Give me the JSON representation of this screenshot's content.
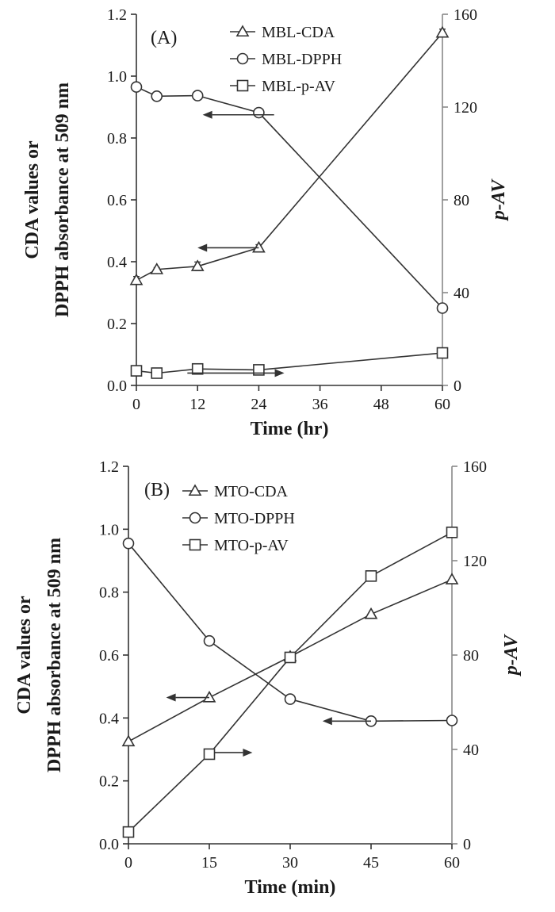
{
  "chart_data": [
    {
      "type": "line",
      "panel_label": "(A)",
      "xlabel": "Time (hr)",
      "ylabel_lines": [
        "CDA values or",
        "DPPH absorbance at 509 nm"
      ],
      "y2label": "p-AV",
      "xlim": [
        0,
        60
      ],
      "ylim": [
        0,
        1.2
      ],
      "y2lim": [
        0,
        160
      ],
      "xticks": [
        "0",
        "12",
        "24",
        "36",
        "48",
        "60"
      ],
      "yticks": [
        "0.0",
        "0.2",
        "0.4",
        "0.6",
        "0.8",
        "1.0",
        "1.2"
      ],
      "y2ticks": [
        "0",
        "40",
        "80",
        "120",
        "160"
      ],
      "legend_position": "top-right",
      "series": [
        {
          "name": "MBL-CDA",
          "marker": "triangle",
          "axis": "left",
          "x": [
            0,
            4,
            12,
            24,
            60
          ],
          "y": [
            0.34,
            0.375,
            0.385,
            0.445,
            1.14
          ],
          "err": [
            0.012,
            0.006,
            0.014,
            0.01,
            0.012
          ]
        },
        {
          "name": "MBL-DPPH",
          "marker": "circle",
          "axis": "left",
          "x": [
            0,
            4,
            12,
            24,
            60
          ],
          "y": [
            0.965,
            0.935,
            0.937,
            0.882,
            0.25
          ],
          "err": [
            0.006,
            0.006,
            0.006,
            0.006,
            0.006
          ]
        },
        {
          "name": "MBL-p-AV",
          "marker": "square",
          "axis": "right",
          "x": [
            0,
            4,
            12,
            24,
            60
          ],
          "y": [
            6.3,
            5.3,
            7.1,
            6.7,
            14.0
          ],
          "err": [
            0.5,
            0.3,
            1.0,
            0.8,
            0.7
          ]
        }
      ],
      "arrows": [
        {
          "series": "MBL-DPPH",
          "direction": "left",
          "x1": 13,
          "x2": 27,
          "y": 0.875,
          "axis": "left"
        },
        {
          "series": "MBL-CDA",
          "direction": "left",
          "x1": 12,
          "x2": 24,
          "y": 0.445,
          "axis": "left"
        },
        {
          "series": "MBL-p-AV",
          "direction": "right",
          "x1": 10,
          "x2": 29,
          "y": 0.04,
          "axis": "left"
        }
      ]
    },
    {
      "type": "line",
      "panel_label": "(B)",
      "xlabel": "Time (min)",
      "ylabel_lines": [
        "CDA values or",
        "DPPH absorbance at 509 nm"
      ],
      "y2label": "p-AV",
      "xlim": [
        0,
        60
      ],
      "ylim": [
        0,
        1.2
      ],
      "y2lim": [
        0,
        160
      ],
      "xticks": [
        "0",
        "15",
        "30",
        "45",
        "60"
      ],
      "yticks": [
        "0.0",
        "0.2",
        "0.4",
        "0.6",
        "0.8",
        "1.0",
        "1.2"
      ],
      "y2ticks": [
        "0",
        "40",
        "80",
        "120",
        "160"
      ],
      "legend_position": "top-left",
      "series": [
        {
          "name": "MTO-CDA",
          "marker": "triangle",
          "axis": "left",
          "x": [
            0,
            15,
            30,
            45,
            60
          ],
          "y": [
            0.325,
            0.465,
            0.595,
            0.73,
            0.84
          ]
        },
        {
          "name": "MTO-DPPH",
          "marker": "circle",
          "axis": "left",
          "x": [
            0,
            15,
            30,
            45,
            60
          ],
          "y": [
            0.955,
            0.645,
            0.46,
            0.39,
            0.392
          ]
        },
        {
          "name": "MTO-p-AV",
          "marker": "square",
          "axis": "right",
          "x": [
            0,
            15,
            30,
            45,
            60
          ],
          "y": [
            5.0,
            38.0,
            79.0,
            113.5,
            132.0
          ]
        }
      ],
      "arrows": [
        {
          "series": "MTO-CDA",
          "direction": "left",
          "x1": 7,
          "x2": 15,
          "y": 0.465,
          "axis": "left"
        },
        {
          "series": "MTO-DPPH",
          "direction": "left",
          "x1": 36,
          "x2": 45,
          "y": 0.39,
          "axis": "left"
        },
        {
          "series": "MTO-p-AV",
          "direction": "right",
          "x1": 16,
          "x2": 23,
          "y": 0.29,
          "axis": "left"
        }
      ]
    }
  ]
}
